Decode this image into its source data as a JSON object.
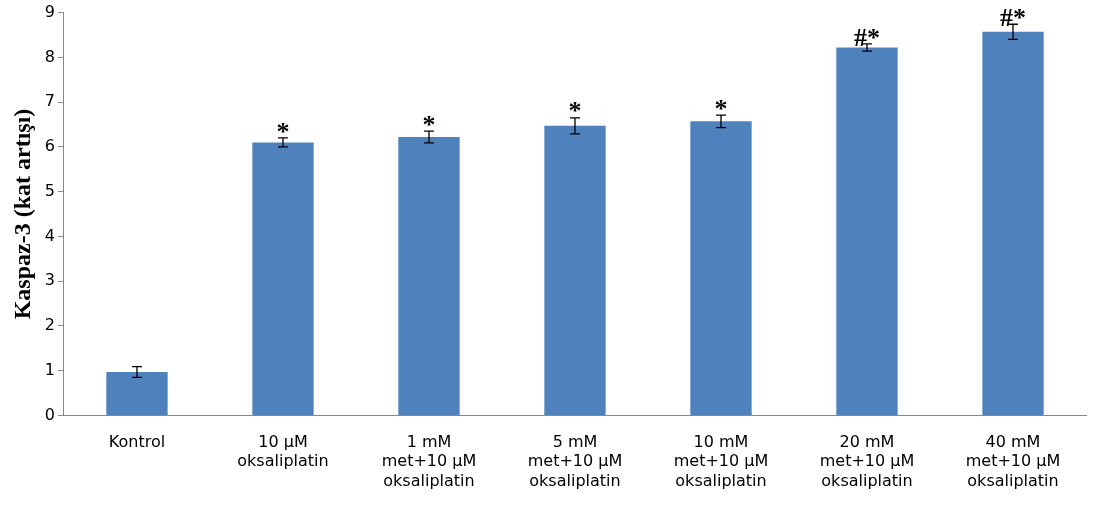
{
  "chart_data": {
    "type": "bar",
    "ylabel": "Kaspaz-3 (kat artışı)",
    "categories": [
      "Kontrol",
      "10 µM\noksaliplatin",
      "1 mM\nmet+10 µM\noksaliplatin",
      "5 mM\nmet+10 µM\noksaliplatin",
      "10 mM\nmet+10 µM\noksaliplatin",
      "20 mM\nmet+10 µM\noksaliplatin",
      "40 mM\nmet+10 µM\noksaliplatin"
    ],
    "values": [
      0.97,
      6.1,
      6.22,
      6.47,
      6.57,
      8.22,
      8.57
    ],
    "errors": [
      0.12,
      0.1,
      0.13,
      0.18,
      0.14,
      0.08,
      0.17
    ],
    "color": "#4f81bd",
    "ylim": [
      0,
      9
    ],
    "yticks": [
      0,
      1,
      2,
      3,
      4,
      5,
      6,
      7,
      8,
      9
    ],
    "grid": false,
    "legend": false,
    "annotations": [
      {
        "text": "*",
        "x": "10 µM\noksaliplatin",
        "y": 6.1
      },
      {
        "text": "*",
        "x": "1 mM\nmet+10 µM\noksaliplatin",
        "y": 6.22
      },
      {
        "text": "*",
        "x": "5 mM\nmet+10 µM\noksaliplatin",
        "y": 6.47
      },
      {
        "text": "*",
        "x": "10 mM\nmet+10 µM\noksaliplatin",
        "y": 6.57
      },
      {
        "text": "#*",
        "x": "20 mM\nmet+10 µM\noksaliplatin",
        "y": 8.22
      },
      {
        "text": "#*",
        "x": "40 mM\nmet+10 µM\noksaliplatin",
        "y": 8.57
      }
    ]
  }
}
